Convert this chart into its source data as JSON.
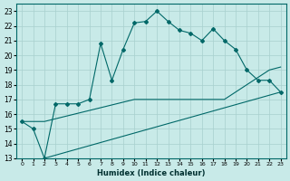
{
  "xlabel": "Humidex (Indice chaleur)",
  "bg_color": "#c8eae8",
  "grid_color": "#a8d0ce",
  "line_color": "#006868",
  "ylim": [
    13,
    23.5
  ],
  "xlim": [
    -0.5,
    23.5
  ],
  "yticks": [
    13,
    14,
    15,
    16,
    17,
    18,
    19,
    20,
    21,
    22,
    23
  ],
  "xticks": [
    0,
    1,
    2,
    3,
    4,
    5,
    6,
    7,
    8,
    9,
    10,
    11,
    12,
    13,
    14,
    15,
    16,
    17,
    18,
    19,
    20,
    21,
    22,
    23
  ],
  "line1_x": [
    0,
    1,
    2,
    3,
    4,
    5,
    6,
    7,
    8,
    9,
    10,
    11,
    12,
    13,
    14,
    15,
    16,
    17,
    18,
    19,
    20,
    21,
    22,
    23
  ],
  "line1_y": [
    15.5,
    15.0,
    13.0,
    16.7,
    16.7,
    16.7,
    17.0,
    20.8,
    18.3,
    20.4,
    22.2,
    22.3,
    23.0,
    22.3,
    21.7,
    21.5,
    21.0,
    21.8,
    21.0,
    20.4,
    19.0,
    18.3,
    18.3,
    17.5
  ],
  "line2_x": [
    0,
    2,
    10,
    11,
    12,
    13,
    14,
    15,
    16,
    17,
    18,
    19,
    20,
    21,
    22,
    23
  ],
  "line2_y": [
    15.5,
    15.5,
    17.0,
    17.0,
    17.0,
    17.0,
    17.0,
    17.0,
    17.0,
    17.0,
    17.0,
    17.5,
    18.0,
    18.5,
    19.0,
    19.2
  ],
  "line3_x": [
    2,
    23
  ],
  "line3_y": [
    13.0,
    17.5
  ]
}
